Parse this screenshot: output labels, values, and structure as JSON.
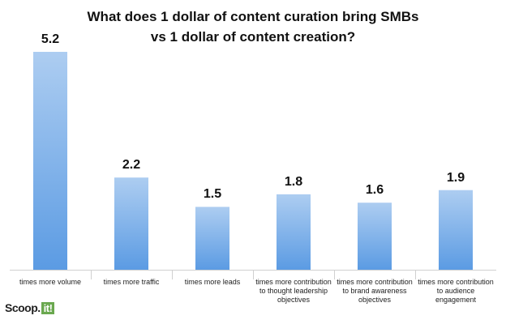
{
  "chart_data": {
    "type": "bar",
    "title": "What does 1 dollar of content curation bring SMBs\nvs 1 dollar of content creation?",
    "categories": [
      "times more volume",
      "times more traffic",
      "times more leads",
      "times more contribution\nto thought leadership\nobjectives",
      "times more contribution\nto brand awareness\nobjectives",
      "times more contribution\nto audience\nengagement"
    ],
    "values": [
      5.2,
      2.2,
      1.5,
      1.8,
      1.6,
      1.9
    ],
    "color": "#5b9be3"
  },
  "logo": {
    "text": "Scoop.",
    "badge": "it!"
  }
}
